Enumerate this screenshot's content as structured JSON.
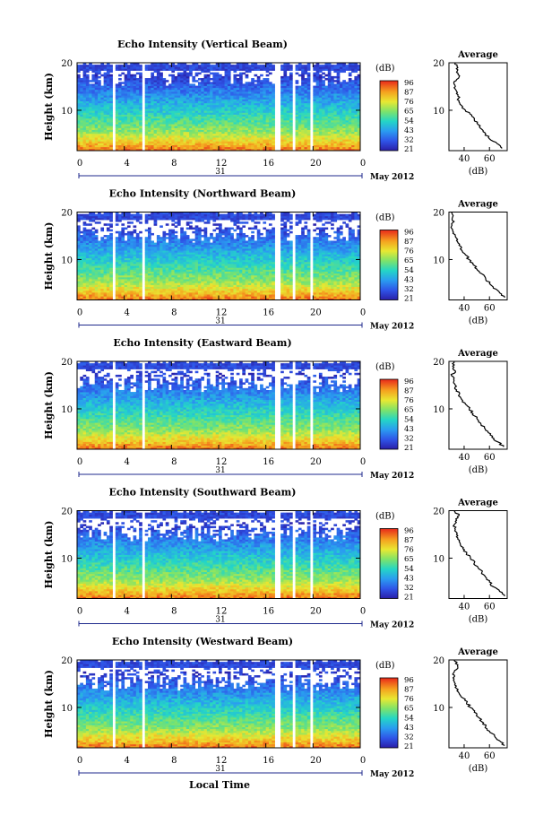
{
  "figure": {
    "x_axis_label": "Local Time",
    "date_day": "31",
    "date_month": "May 2012",
    "unit_label": "(dB)",
    "avg_title": "Average",
    "avg_xlabel": "(dB)"
  },
  "chart_data": [
    {
      "type": "heatmap",
      "title": "Echo Intensity (Vertical Beam)",
      "ylabel": "Height (km)",
      "xlabel": "Local Time",
      "x_ticks": [
        "0",
        "4",
        "8",
        "12",
        "16",
        "20",
        "0"
      ],
      "y_ticks": [
        "20",
        "10"
      ],
      "xlim_hours": [
        0,
        24
      ],
      "ylim_km": [
        1.5,
        20
      ],
      "colorbar": {
        "label": "(dB)",
        "ticks": [
          "96",
          "87",
          "76",
          "65",
          "54",
          "43",
          "32",
          "21"
        ],
        "range": [
          21,
          96
        ]
      },
      "data_gaps_hours": [
        [
          0.9,
          1.1
        ],
        [
          3.1,
          3.3
        ],
        [
          5.6,
          5.8
        ],
        [
          16.8,
          17.2
        ],
        [
          18.3,
          18.5
        ],
        [
          19.7,
          20.1
        ]
      ],
      "average_profile": {
        "title": "Average",
        "xlabel": "(dB)",
        "x_ticks": [
          "40",
          "60"
        ],
        "y_ticks": [
          "20",
          "10"
        ],
        "height_km": [
          2,
          3,
          4,
          5,
          6,
          7,
          8,
          9,
          10,
          11,
          12,
          13,
          14,
          15,
          16,
          17,
          18,
          19,
          20
        ],
        "echo_db": [
          70,
          66,
          60,
          57,
          54,
          51,
          48,
          46,
          41,
          38,
          36,
          35,
          34,
          33,
          32,
          36,
          34,
          35,
          33
        ]
      }
    },
    {
      "type": "heatmap",
      "title": "Echo Intensity (Northward Beam)",
      "ylabel": "Height (km)",
      "xlabel": "Local Time",
      "x_ticks": [
        "0",
        "4",
        "8",
        "12",
        "16",
        "20",
        "0"
      ],
      "y_ticks": [
        "20",
        "10"
      ],
      "xlim_hours": [
        0,
        24
      ],
      "ylim_km": [
        1.5,
        20
      ],
      "colorbar": {
        "label": "(dB)",
        "ticks": [
          "96",
          "87",
          "76",
          "65",
          "54",
          "43",
          "32",
          "21"
        ],
        "range": [
          21,
          96
        ]
      },
      "data_gaps_hours": [
        [
          0.9,
          1.1
        ],
        [
          3.1,
          3.3
        ],
        [
          5.6,
          5.8
        ],
        [
          16.8,
          17.2
        ],
        [
          18.3,
          18.5
        ],
        [
          19.7,
          20.1
        ]
      ],
      "average_profile": {
        "title": "Average",
        "xlabel": "(dB)",
        "x_ticks": [
          "40",
          "60"
        ],
        "y_ticks": [
          "20",
          "10"
        ],
        "height_km": [
          2,
          3,
          4,
          5,
          6,
          7,
          8,
          9,
          10,
          11,
          12,
          13,
          14,
          15,
          16,
          17,
          18,
          19,
          20
        ],
        "echo_db": [
          72,
          68,
          63,
          60,
          57,
          54,
          50,
          47,
          44,
          41,
          38,
          36,
          34,
          33,
          31,
          30,
          32,
          31,
          30
        ]
      }
    },
    {
      "type": "heatmap",
      "title": "Echo Intensity (Eastward Beam)",
      "ylabel": "Height (km)",
      "xlabel": "Local Time",
      "x_ticks": [
        "0",
        "4",
        "8",
        "12",
        "16",
        "20",
        "0"
      ],
      "y_ticks": [
        "20",
        "10"
      ],
      "xlim_hours": [
        0,
        24
      ],
      "ylim_km": [
        1.5,
        20
      ],
      "colorbar": {
        "label": "(dB)",
        "ticks": [
          "96",
          "87",
          "76",
          "65",
          "54",
          "43",
          "32",
          "21"
        ],
        "range": [
          21,
          96
        ]
      },
      "data_gaps_hours": [
        [
          0.9,
          1.1
        ],
        [
          3.1,
          3.3
        ],
        [
          5.6,
          5.8
        ],
        [
          16.8,
          17.2
        ],
        [
          18.3,
          18.5
        ],
        [
          19.7,
          20.1
        ]
      ],
      "average_profile": {
        "title": "Average",
        "xlabel": "(dB)",
        "x_ticks": [
          "40",
          "60"
        ],
        "y_ticks": [
          "20",
          "10"
        ],
        "height_km": [
          2,
          3,
          4,
          5,
          6,
          7,
          8,
          9,
          10,
          11,
          12,
          13,
          14,
          15,
          16,
          17,
          18,
          19,
          20
        ],
        "echo_db": [
          71,
          67,
          62,
          59,
          56,
          53,
          50,
          47,
          44,
          41,
          38,
          36,
          34,
          33,
          32,
          30,
          33,
          31,
          32
        ]
      }
    },
    {
      "type": "heatmap",
      "title": "Echo Intensity (Southward Beam)",
      "ylabel": "Height (km)",
      "xlabel": "Local Time",
      "x_ticks": [
        "0",
        "4",
        "8",
        "12",
        "16",
        "20",
        "0"
      ],
      "y_ticks": [
        "20",
        "10"
      ],
      "xlim_hours": [
        0,
        24
      ],
      "ylim_km": [
        1.5,
        20
      ],
      "colorbar": {
        "label": "(dB)",
        "ticks": [
          "96",
          "87",
          "76",
          "65",
          "54",
          "43",
          "32",
          "21"
        ],
        "range": [
          21,
          96
        ]
      },
      "data_gaps_hours": [
        [
          0.9,
          1.1
        ],
        [
          3.1,
          3.3
        ],
        [
          5.6,
          5.8
        ],
        [
          16.8,
          17.2
        ],
        [
          18.3,
          18.5
        ],
        [
          19.7,
          20.1
        ]
      ],
      "average_profile": {
        "title": "Average",
        "xlabel": "(dB)",
        "x_ticks": [
          "40",
          "60"
        ],
        "y_ticks": [
          "20",
          "10"
        ],
        "height_km": [
          2,
          3,
          4,
          5,
          6,
          7,
          8,
          9,
          10,
          11,
          12,
          13,
          14,
          15,
          16,
          17,
          18,
          19,
          20
        ],
        "echo_db": [
          72,
          68,
          63,
          60,
          57,
          54,
          51,
          48,
          45,
          42,
          39,
          37,
          35,
          34,
          33,
          32,
          34,
          36,
          32
        ]
      }
    },
    {
      "type": "heatmap",
      "title": "Echo Intensity (Westward Beam)",
      "ylabel": "Height (km)",
      "xlabel": "Local Time",
      "x_ticks": [
        "0",
        "4",
        "8",
        "12",
        "16",
        "20",
        "0"
      ],
      "y_ticks": [
        "20",
        "10"
      ],
      "xlim_hours": [
        0,
        24
      ],
      "ylim_km": [
        1.5,
        20
      ],
      "colorbar": {
        "label": "(dB)",
        "ticks": [
          "96",
          "87",
          "76",
          "65",
          "54",
          "43",
          "32",
          "21"
        ],
        "range": [
          21,
          96
        ]
      },
      "data_gaps_hours": [
        [
          0.9,
          1.1
        ],
        [
          3.1,
          3.3
        ],
        [
          5.6,
          5.8
        ],
        [
          16.8,
          17.2
        ],
        [
          18.3,
          18.5
        ],
        [
          19.7,
          20.1
        ]
      ],
      "average_profile": {
        "title": "Average",
        "xlabel": "(dB)",
        "x_ticks": [
          "40",
          "60"
        ],
        "y_ticks": [
          "20",
          "10"
        ],
        "height_km": [
          2,
          3,
          4,
          5,
          6,
          7,
          8,
          9,
          10,
          11,
          12,
          13,
          14,
          15,
          16,
          17,
          18,
          19,
          20
        ],
        "echo_db": [
          72,
          68,
          64,
          60,
          57,
          54,
          51,
          48,
          45,
          42,
          39,
          36,
          34,
          33,
          32,
          31,
          34,
          35,
          32
        ]
      }
    }
  ]
}
